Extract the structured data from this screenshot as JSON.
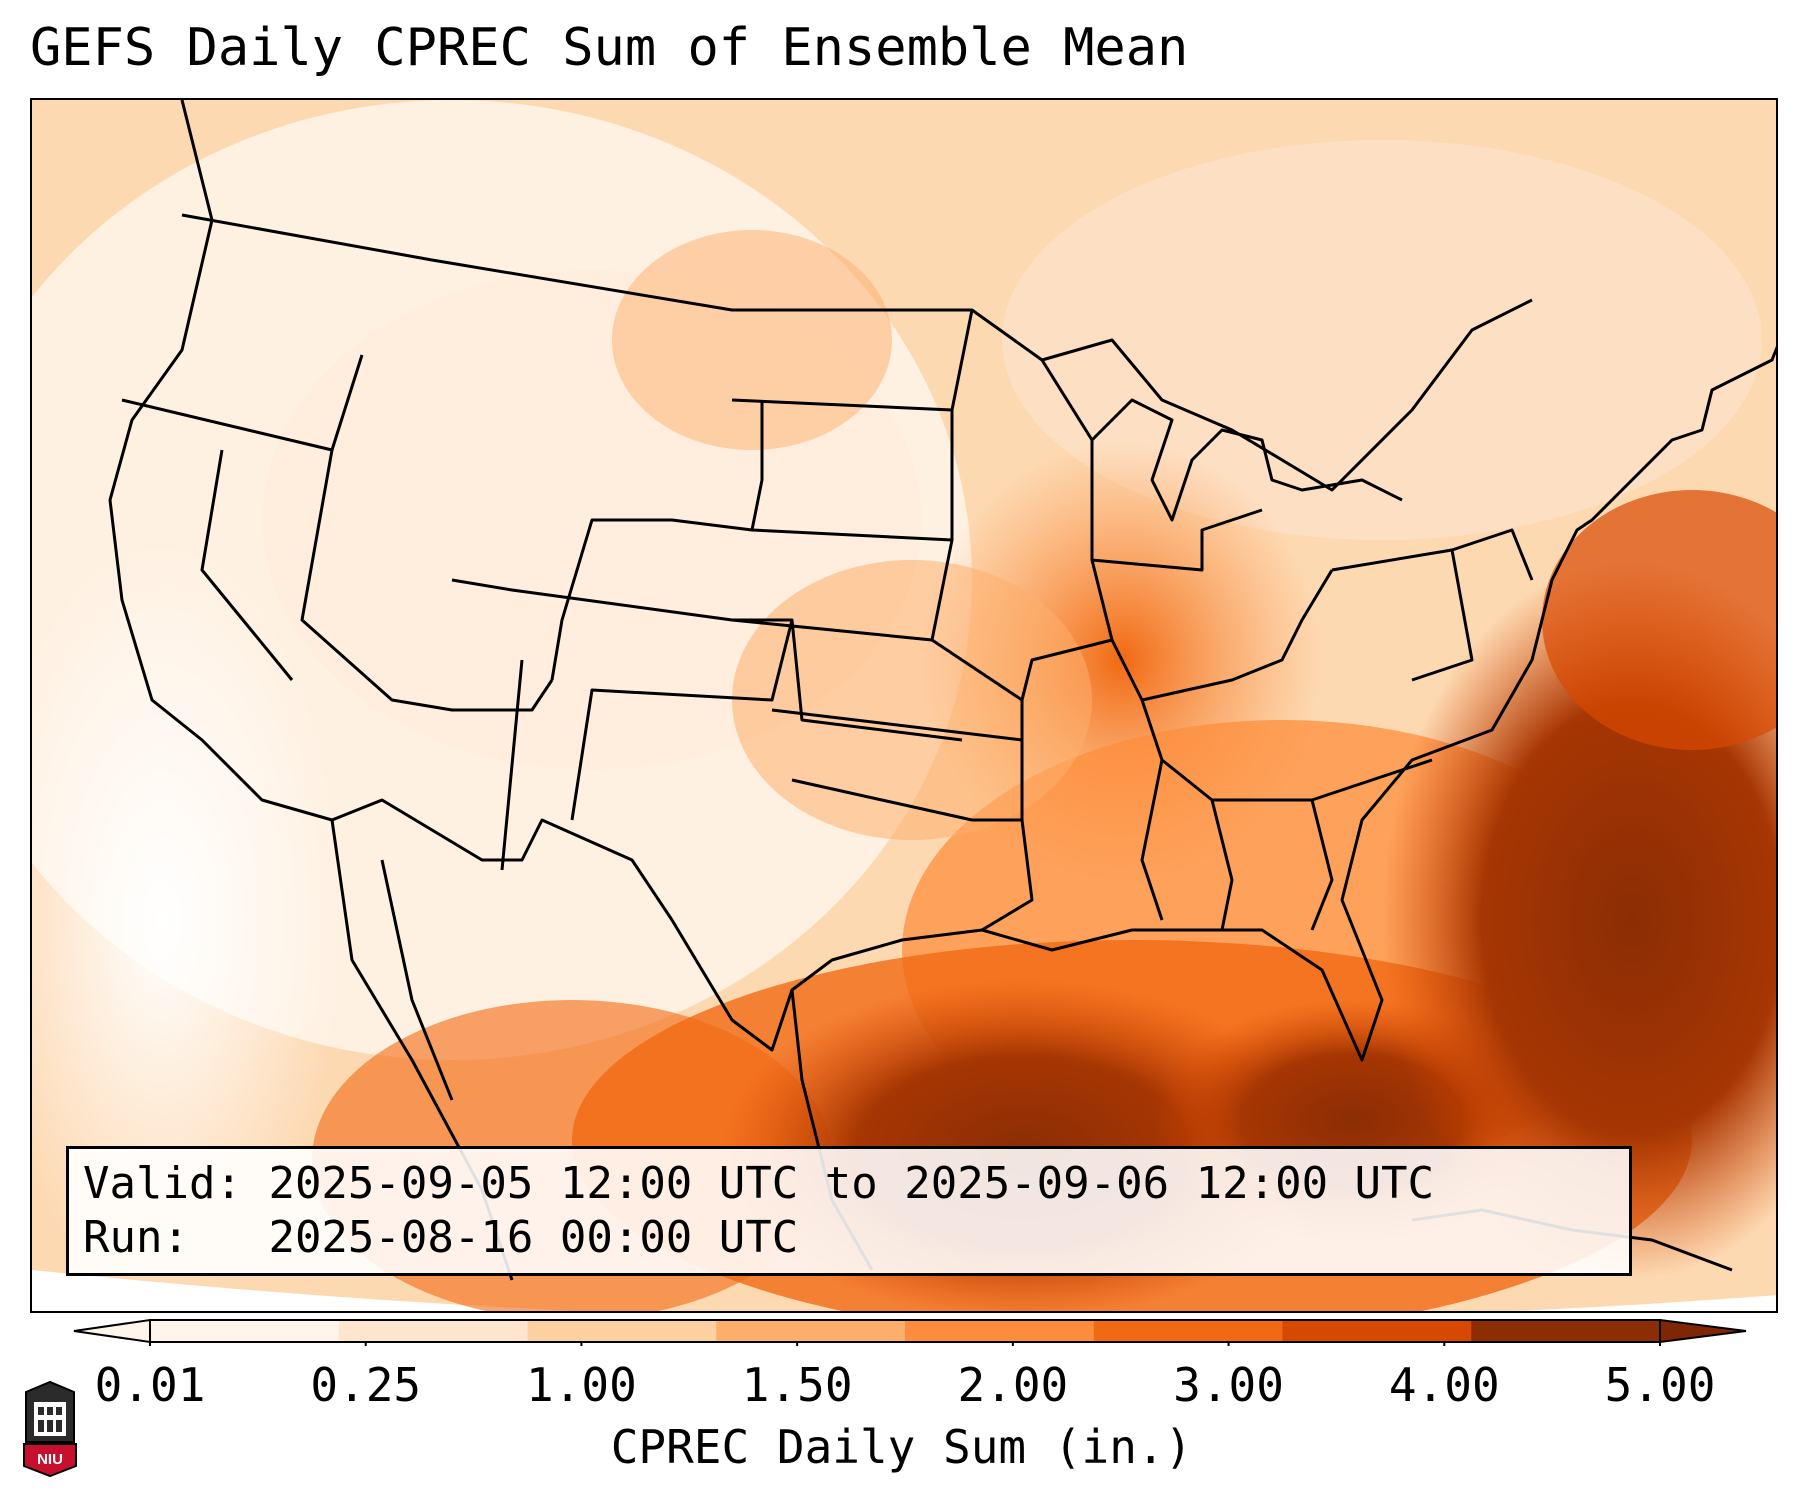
{
  "title": "GEFS Daily CPREC Sum of Ensemble Mean",
  "info": {
    "valid_label": "Valid:",
    "valid_value": "2025-09-05 12:00 UTC to 2025-09-06 12:00 UTC",
    "run_label": "Run:",
    "run_value": "2025-08-16 00:00 UTC"
  },
  "colorbar": {
    "label": "CPREC Daily Sum (in.)",
    "ticks": [
      "0.01",
      "0.25",
      "1.00",
      "1.50",
      "2.00",
      "3.00",
      "4.00",
      "5.00"
    ],
    "colors": [
      "#fff5eb",
      "#fee6ce",
      "#fdd0a2",
      "#fdae6b",
      "#fd8d3c",
      "#f16913",
      "#d94801",
      "#8c2d04"
    ],
    "under_color": "#fff5eb",
    "over_color": "#7f2704"
  },
  "map": {
    "region": "Continental United States",
    "dataset": "GEFS ensemble mean convective precipitation",
    "units": "in."
  },
  "logo": {
    "text": "NIU"
  }
}
